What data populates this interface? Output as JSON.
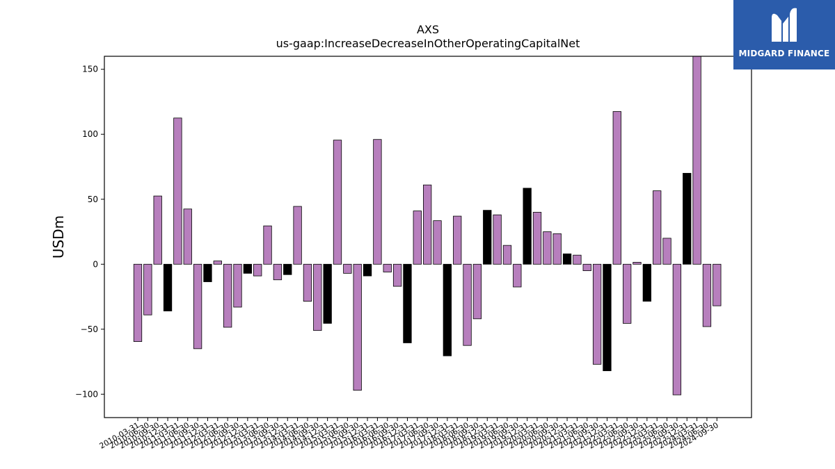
{
  "logo": {
    "text": "MIDGARD FINANCE",
    "icon": "midgard-m-logo-icon",
    "background": "#2b5cab"
  },
  "chart_data": {
    "type": "bar",
    "title": "AXS",
    "subtitle": "us-gaap:IncreaseDecreaseInOtherOperatingCapitalNet",
    "xlabel": "",
    "ylabel": "USDm",
    "ylim": [
      -118,
      160
    ],
    "yticks": [
      -100,
      -50,
      0,
      50,
      100,
      150
    ],
    "grid": false,
    "colors": {
      "quarter": "#b77fbd",
      "year_end": "#000000",
      "edge": "#000000"
    },
    "categories": [
      "2010-03-31",
      "2010-06-30",
      "2010-09-30",
      "2010-12-31",
      "2011-03-31",
      "2011-06-30",
      "2011-09-30",
      "2011-12-31",
      "2012-03-31",
      "2012-06-30",
      "2012-09-30",
      "2012-12-31",
      "2013-03-31",
      "2013-06-30",
      "2013-09-30",
      "2013-12-31",
      "2014-03-31",
      "2014-06-30",
      "2014-09-30",
      "2014-12-31",
      "2015-03-31",
      "2015-06-30",
      "2015-09-30",
      "2015-12-31",
      "2016-03-31",
      "2016-06-30",
      "2016-09-30",
      "2016-12-31",
      "2017-03-31",
      "2017-06-30",
      "2017-09-30",
      "2017-12-31",
      "2018-03-31",
      "2018-06-30",
      "2018-09-30",
      "2018-12-31",
      "2019-03-31",
      "2019-06-30",
      "2019-09-30",
      "2019-12-31",
      "2020-03-31",
      "2020-06-30",
      "2020-09-30",
      "2020-12-31",
      "2021-03-31",
      "2021-06-30",
      "2021-09-30",
      "2021-12-31",
      "2022-03-31",
      "2022-06-30",
      "2022-09-30",
      "2022-12-31",
      "2023-03-31",
      "2023-06-30",
      "2023-09-30",
      "2023-12-31",
      "2024-03-31",
      "2024-06-30",
      "2024-09-30"
    ],
    "values": [
      -59.5,
      -39,
      52.5,
      -36,
      112.5,
      42.5,
      -65,
      -13.5,
      2.5,
      -48.5,
      -33,
      -7,
      -9,
      29.5,
      -12,
      -8,
      44.5,
      -28.5,
      -51,
      -45.5,
      95.5,
      -7,
      -97,
      -9,
      96,
      -6,
      -17,
      -60.5,
      41,
      61,
      33.5,
      -70.5,
      37,
      -62.5,
      -42,
      41.5,
      38,
      14.5,
      -17.5,
      58.5,
      40,
      25,
      23.5,
      8,
      7,
      -5,
      -77,
      -82,
      117.5,
      -45.5,
      1.5,
      -28.5,
      56.5,
      20,
      -100.5,
      70,
      160,
      -48,
      -32
    ],
    "year_end": [
      false,
      false,
      false,
      true,
      false,
      false,
      false,
      true,
      false,
      false,
      false,
      true,
      false,
      false,
      false,
      true,
      false,
      false,
      false,
      true,
      false,
      false,
      false,
      true,
      false,
      false,
      false,
      true,
      false,
      false,
      false,
      true,
      false,
      false,
      false,
      true,
      false,
      false,
      false,
      true,
      false,
      false,
      false,
      true,
      false,
      false,
      false,
      true,
      false,
      false,
      false,
      true,
      false,
      false,
      false,
      true,
      false,
      false,
      false
    ]
  }
}
